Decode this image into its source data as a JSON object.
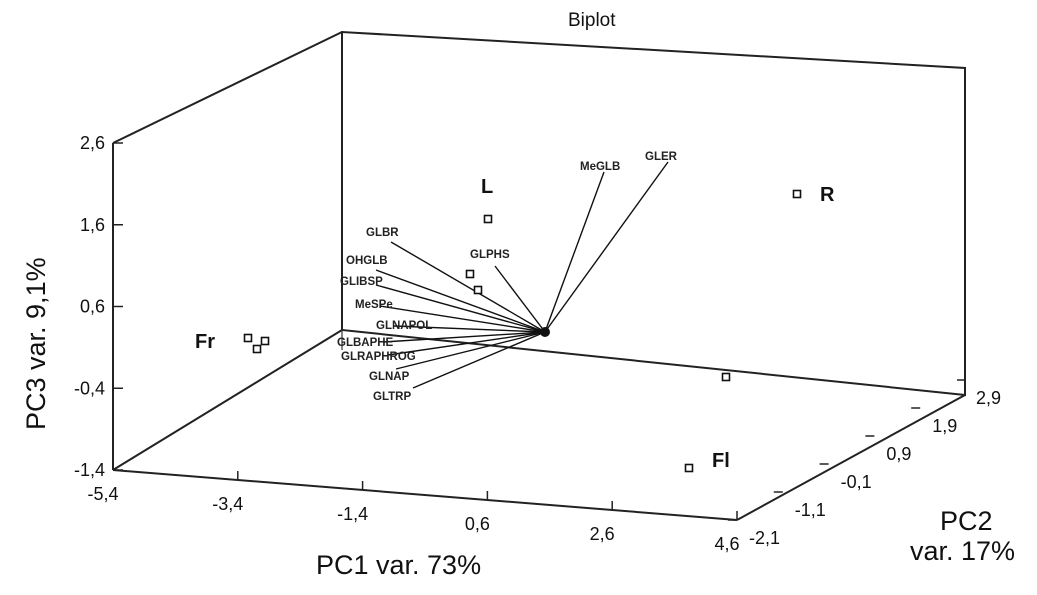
{
  "chart_data": {
    "type": "scatter",
    "title": "Biplot",
    "xlabel": "PC1  var. 73%",
    "ylabel": "PC3  var.  9,1%",
    "zlabel_line1": "PC2",
    "zlabel_line2": "var. 17%",
    "x_ticks": [
      "-5,4",
      "-3,4",
      "-1,4",
      "0,6",
      "2,6",
      "4,6"
    ],
    "y_ticks": [
      "-1,4",
      "-0,4",
      "0,6",
      "1,6",
      "2,6"
    ],
    "z_ticks": [
      "-2,1",
      "-1,1",
      "-0,1",
      "0,9",
      "1,9",
      "2,9"
    ],
    "xlim": [
      -5.4,
      4.6
    ],
    "ylim": [
      -1.4,
      2.6
    ],
    "zlim": [
      -2.1,
      2.9
    ],
    "grid": false,
    "sample_points": [
      {
        "label": "Fr",
        "pc1": -4.3,
        "pc2": 0.4,
        "pc3": 0.5
      },
      {
        "label": "",
        "pc1": -4.1,
        "pc2": 0.4,
        "pc3": 0.5
      },
      {
        "label": "",
        "pc1": -4.2,
        "pc2": 0.3,
        "pc3": 0.45
      },
      {
        "label": "L",
        "pc1": -0.8,
        "pc2": 2.4,
        "pc3": 1.8
      },
      {
        "label": "",
        "pc1": -1.1,
        "pc2": 2.2,
        "pc3": 1.3
      },
      {
        "label": "",
        "pc1": -1.0,
        "pc2": 2.0,
        "pc3": 1.2
      },
      {
        "label": "R",
        "pc1": 2.8,
        "pc2": 2.9,
        "pc3": 2.0
      },
      {
        "label": "Fl",
        "pc1": 3.3,
        "pc2": -2.0,
        "pc3": -0.6
      },
      {
        "label": "",
        "pc1": 3.5,
        "pc2": 2.8,
        "pc3": -0.2
      }
    ],
    "variables": [
      "MeGLB",
      "GLER",
      "GLBR",
      "GLPHS",
      "OHGLB",
      "GLIBSP",
      "MeSPe",
      "GLNAPOL",
      "GLBAPHE",
      "GLRAPHROG",
      "GLNAP",
      "GLTRP"
    ]
  }
}
